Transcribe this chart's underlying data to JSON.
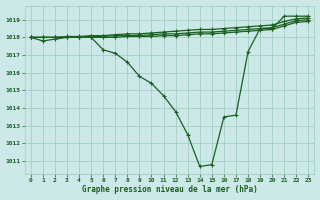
{
  "background_color": "#cce8e8",
  "plot_bg_color": "#cce8e8",
  "grid_color": "#99ccbb",
  "line_color": "#1a6020",
  "title": "Graphe pression niveau de la mer (hPa)",
  "xlim": [
    -0.5,
    23.5
  ],
  "ylim": [
    1010.3,
    1019.8
  ],
  "yticks": [
    1011,
    1012,
    1013,
    1014,
    1015,
    1016,
    1017,
    1018,
    1019
  ],
  "xticks": [
    0,
    1,
    2,
    3,
    4,
    5,
    6,
    7,
    8,
    9,
    10,
    11,
    12,
    13,
    14,
    15,
    16,
    17,
    18,
    19,
    20,
    21,
    22,
    23
  ],
  "main_x": [
    0,
    1,
    2,
    3,
    4,
    5,
    6,
    7,
    8,
    9,
    10,
    11,
    12,
    13,
    14,
    15,
    16,
    17,
    18,
    19,
    20,
    21,
    22,
    23
  ],
  "main_y": [
    1018.0,
    1017.8,
    1017.9,
    1018.0,
    1018.0,
    1018.0,
    1017.3,
    1017.1,
    1016.6,
    1015.8,
    1015.4,
    1014.7,
    1013.8,
    1012.5,
    1010.7,
    1010.8,
    1013.5,
    1013.6,
    1017.2,
    1018.5,
    1018.5,
    1019.2,
    1019.2,
    1019.2
  ],
  "flat1_x": [
    0,
    1,
    2,
    3,
    4,
    5,
    6,
    7,
    8,
    9,
    10,
    11,
    12,
    13,
    14,
    15,
    16,
    17,
    18,
    19,
    20,
    21,
    22,
    23
  ],
  "flat1_y": [
    1018.0,
    1018.0,
    1018.0,
    1018.05,
    1018.05,
    1018.1,
    1018.1,
    1018.15,
    1018.2,
    1018.2,
    1018.25,
    1018.3,
    1018.35,
    1018.4,
    1018.45,
    1018.45,
    1018.5,
    1018.55,
    1018.6,
    1018.65,
    1018.7,
    1018.9,
    1019.05,
    1019.1
  ],
  "flat2_x": [
    0,
    1,
    2,
    3,
    4,
    5,
    6,
    7,
    8,
    9,
    10,
    11,
    12,
    13,
    14,
    15,
    16,
    17,
    18,
    19,
    20,
    21,
    22,
    23
  ],
  "flat2_y": [
    1018.0,
    1018.0,
    1018.0,
    1018.0,
    1018.0,
    1018.05,
    1018.05,
    1018.1,
    1018.1,
    1018.1,
    1018.15,
    1018.2,
    1018.2,
    1018.25,
    1018.3,
    1018.3,
    1018.35,
    1018.4,
    1018.45,
    1018.5,
    1018.55,
    1018.75,
    1018.95,
    1019.0
  ],
  "flat3_x": [
    0,
    1,
    2,
    3,
    4,
    5,
    6,
    7,
    8,
    9,
    10,
    11,
    12,
    13,
    14,
    15,
    16,
    17,
    18,
    19,
    20,
    21,
    22,
    23
  ],
  "flat3_y": [
    1018.0,
    1018.0,
    1018.0,
    1018.0,
    1018.0,
    1018.0,
    1018.0,
    1018.0,
    1018.05,
    1018.05,
    1018.05,
    1018.1,
    1018.1,
    1018.15,
    1018.2,
    1018.2,
    1018.25,
    1018.3,
    1018.35,
    1018.4,
    1018.45,
    1018.65,
    1018.85,
    1018.9
  ]
}
